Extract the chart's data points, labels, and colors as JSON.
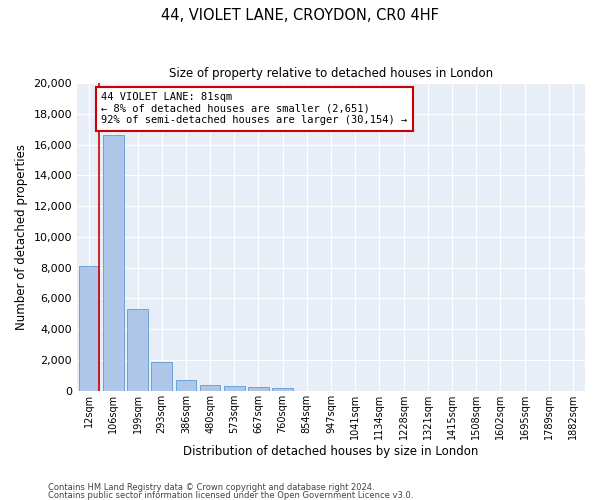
{
  "title_line1": "44, VIOLET LANE, CROYDON, CR0 4HF",
  "title_line2": "Size of property relative to detached houses in London",
  "xlabel": "Distribution of detached houses by size in London",
  "ylabel": "Number of detached properties",
  "categories": [
    "12sqm",
    "106sqm",
    "199sqm",
    "293sqm",
    "386sqm",
    "480sqm",
    "573sqm",
    "667sqm",
    "760sqm",
    "854sqm",
    "947sqm",
    "1041sqm",
    "1134sqm",
    "1228sqm",
    "1321sqm",
    "1415sqm",
    "1508sqm",
    "1602sqm",
    "1695sqm",
    "1789sqm",
    "1882sqm"
  ],
  "values": [
    8100,
    16600,
    5300,
    1850,
    700,
    380,
    290,
    230,
    190,
    0,
    0,
    0,
    0,
    0,
    0,
    0,
    0,
    0,
    0,
    0,
    0
  ],
  "bar_color": "#aec6e8",
  "bar_edgecolor": "#5b9bd5",
  "vline_color": "#cc0000",
  "annotation_text": "44 VIOLET LANE: 81sqm\n← 8% of detached houses are smaller (2,651)\n92% of semi-detached houses are larger (30,154) →",
  "annotation_box_edgecolor": "#cc0000",
  "annotation_fontsize": 7.5,
  "ylim": [
    0,
    20000
  ],
  "yticks": [
    0,
    2000,
    4000,
    6000,
    8000,
    10000,
    12000,
    14000,
    16000,
    18000,
    20000
  ],
  "background_color": "#e8eef7",
  "footer_line1": "Contains HM Land Registry data © Crown copyright and database right 2024.",
  "footer_line2": "Contains public sector information licensed under the Open Government Licence v3.0."
}
